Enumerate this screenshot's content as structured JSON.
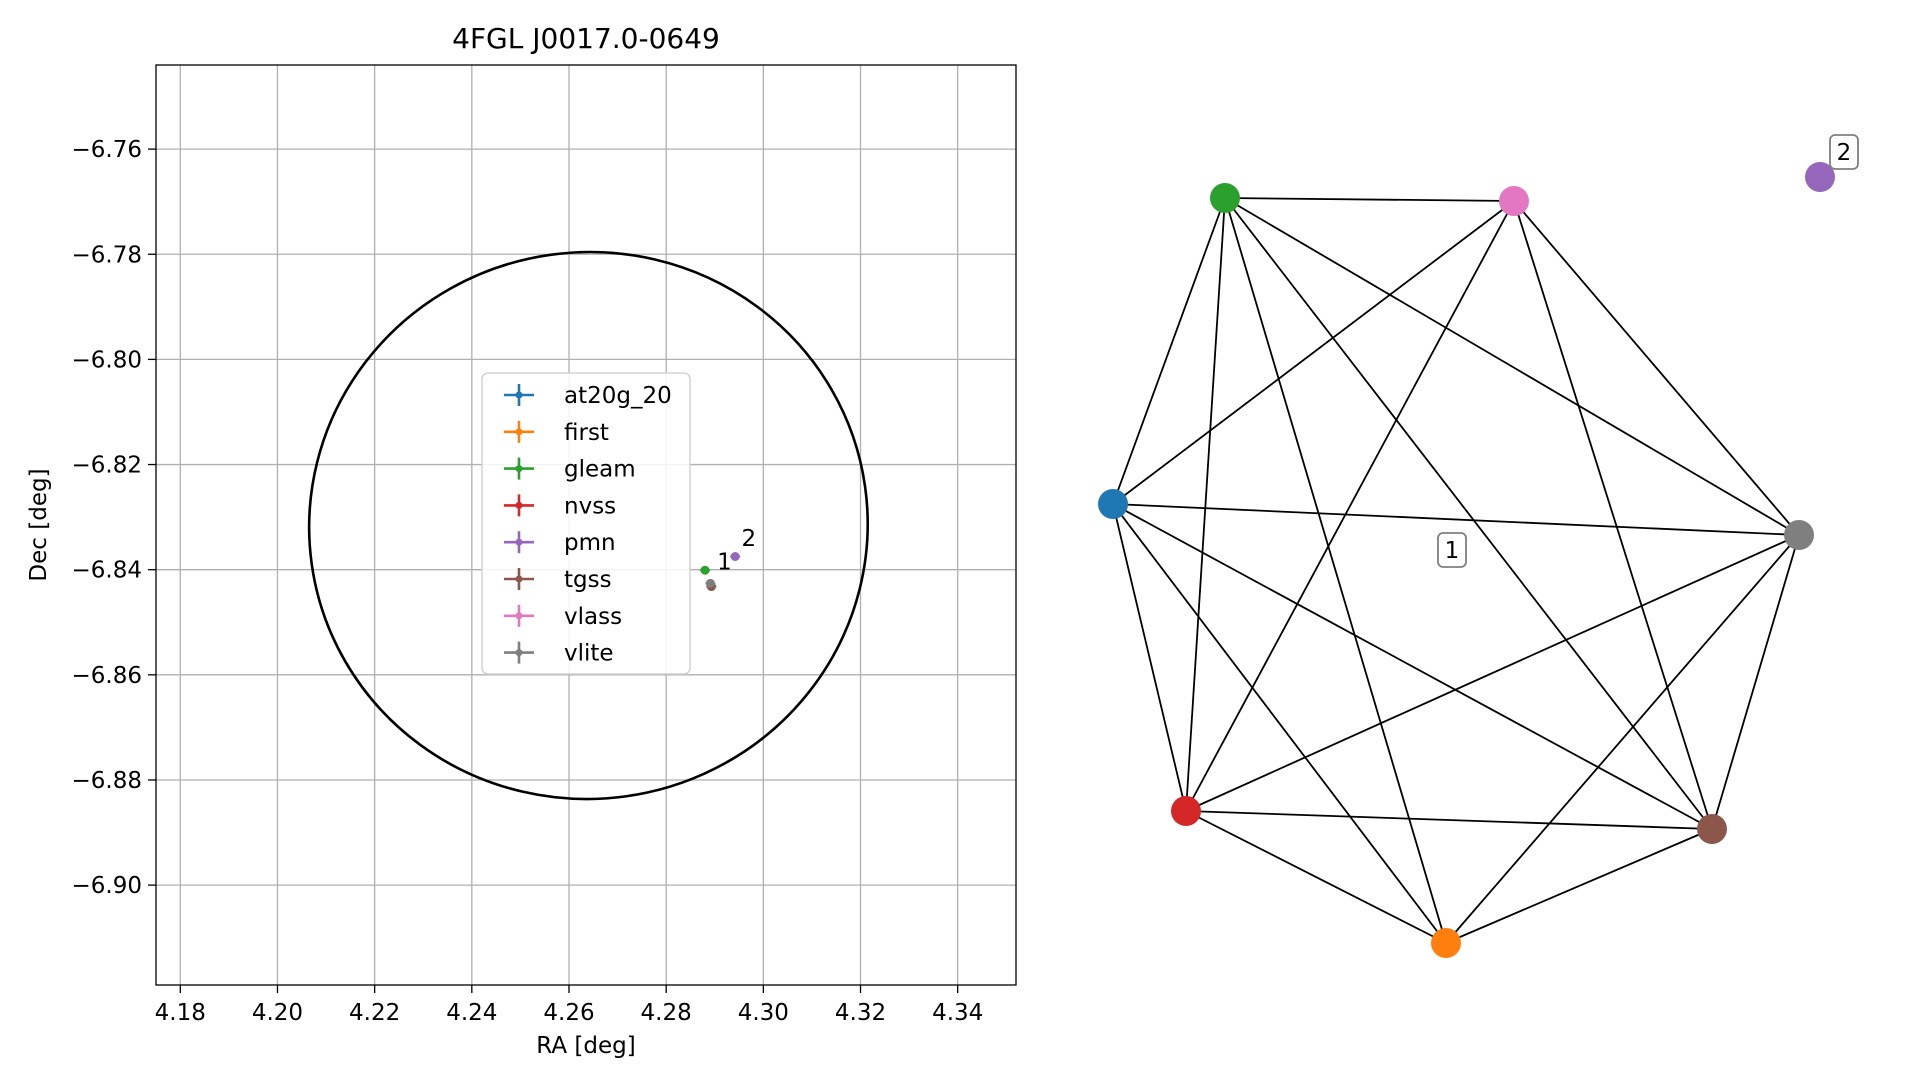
{
  "chart_data": [
    {
      "type": "scatter",
      "title": "4FGL J0017.0-0649",
      "xlabel": "RA [deg]",
      "ylabel": "Dec [deg]",
      "xlim": [
        4.175,
        4.352
      ],
      "ylim": [
        -6.919,
        -6.744
      ],
      "xticks": [
        4.18,
        4.2,
        4.22,
        4.24,
        4.26,
        4.28,
        4.3,
        4.32,
        4.34
      ],
      "xtick_labels": [
        "4.18",
        "4.20",
        "4.22",
        "4.24",
        "4.26",
        "4.28",
        "4.30",
        "4.32",
        "4.34"
      ],
      "yticks": [
        -6.76,
        -6.78,
        -6.8,
        -6.82,
        -6.84,
        -6.86,
        -6.88,
        -6.9
      ],
      "ytick_labels": [
        "−6.76",
        "−6.78",
        "−6.80",
        "−6.82",
        "−6.84",
        "−6.86",
        "−6.88",
        "−6.90"
      ],
      "grid": true,
      "legend_position": "center",
      "series": [
        {
          "name": "at20g_20",
          "color": "#1f77b4",
          "points": []
        },
        {
          "name": "first",
          "color": "#ff7f0e",
          "points": []
        },
        {
          "name": "gleam",
          "color": "#2ca02c",
          "points": [
            [
              4.288,
              -6.8401
            ]
          ]
        },
        {
          "name": "nvss",
          "color": "#d62728",
          "points": []
        },
        {
          "name": "pmn",
          "color": "#9467bd",
          "points": [
            [
              4.2942,
              -6.8375
            ]
          ]
        },
        {
          "name": "tgss",
          "color": "#8c564b",
          "points": [
            [
              4.2893,
              -6.8432
            ]
          ]
        },
        {
          "name": "vlass",
          "color": "#e377c2",
          "points": []
        },
        {
          "name": "vlite",
          "color": "#7f7f7f",
          "points": [
            [
              4.2891,
              -6.8426
            ]
          ]
        }
      ],
      "ellipse": {
        "center": [
          4.264,
          -6.8316
        ],
        "semi_axes_deg": [
          0.0575,
          0.052
        ],
        "angle_deg": -8,
        "color": "#000000"
      },
      "annotations": [
        {
          "text": "1",
          "x": 4.2905,
          "y": -6.84
        },
        {
          "text": "2",
          "x": 4.2955,
          "y": -6.8355
        }
      ]
    },
    {
      "type": "network",
      "nodes": [
        {
          "name": "at20g_20",
          "color": "#1f77b4"
        },
        {
          "name": "gleam",
          "color": "#2ca02c"
        },
        {
          "name": "vlass",
          "color": "#e377c2"
        },
        {
          "name": "pmn",
          "color": "#9467bd"
        },
        {
          "name": "vlite",
          "color": "#7f7f7f"
        },
        {
          "name": "tgss",
          "color": "#8c564b"
        },
        {
          "name": "first",
          "color": "#ff7f0e"
        },
        {
          "name": "nvss",
          "color": "#d62728"
        }
      ],
      "edges": [
        [
          "at20g_20",
          "gleam"
        ],
        [
          "at20g_20",
          "vlass"
        ],
        [
          "at20g_20",
          "vlite"
        ],
        [
          "at20g_20",
          "tgss"
        ],
        [
          "at20g_20",
          "first"
        ],
        [
          "at20g_20",
          "nvss"
        ],
        [
          "gleam",
          "vlass"
        ],
        [
          "gleam",
          "vlite"
        ],
        [
          "gleam",
          "tgss"
        ],
        [
          "gleam",
          "first"
        ],
        [
          "gleam",
          "nvss"
        ],
        [
          "vlass",
          "tgss"
        ],
        [
          "vlass",
          "vlite"
        ],
        [
          "vlass",
          "nvss"
        ],
        [
          "vlite",
          "tgss"
        ],
        [
          "vlite",
          "first"
        ],
        [
          "vlite",
          "nvss"
        ],
        [
          "tgss",
          "first"
        ],
        [
          "tgss",
          "nvss"
        ],
        [
          "first",
          "nvss"
        ]
      ],
      "labels": [
        {
          "text": "1"
        },
        {
          "text": "2"
        }
      ]
    }
  ]
}
